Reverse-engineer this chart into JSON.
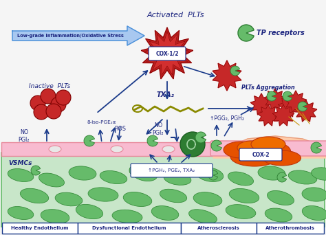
{
  "bg_color": "#f5f5f5",
  "fig_width": 4.74,
  "fig_height": 3.42,
  "bottom_labels": [
    "Healthy Endothelium",
    "Dysfunctional Endothelium",
    "Atherosclerosis",
    "Atherothrombosis"
  ],
  "bottom_label_color": "#1a237e",
  "bottom_box_color": "#1a3a8a",
  "arrow_color": "#1a3a8a",
  "text_color": "#1a237e",
  "endothelium_color": "#f8bbd0",
  "endothelium_edge": "#e8889a",
  "vsmc_bg_color": "#c8e6c9",
  "vsmc_cell_color": "#66bb6a",
  "vsmc_cell_edge": "#388e3c",
  "cox2_color": "#e65100",
  "green_cell_color": "#2e7d32",
  "inactive_plt_color": "#c62828",
  "active_plt_color": "#c62828",
  "txa2_color": "#7a7a20",
  "top_arrow_text": "Activated  PLTs",
  "inflammation_text": "Low-grade Inflammation/Oxidative Stress",
  "tp_receptor_text": "TP receptors",
  "inactive_plt_text": "Inactive  PLTs",
  "plts_aggregation_text": "PLTs Aggregation",
  "vsmc_text": "VSMCs",
  "no_pgi2_text1": "NO\nPGI₂",
  "ros_text": "ROS",
  "no_pgi2_text2": "NO\nPGI₂",
  "iso_pge_text": "8-iso-PGE₂α",
  "pgg_text": "↑PGG₂, PGH₂",
  "txa2_label": "TXA₂",
  "cox12_label": "COX-1/2",
  "cox2_label": "COX-2",
  "bottom_box_text": "↑PGH₂, PGE₂, TXA₂",
  "infl_arrow_color": "#4a90d9",
  "infl_arrow_fill": "#a8c8f0"
}
